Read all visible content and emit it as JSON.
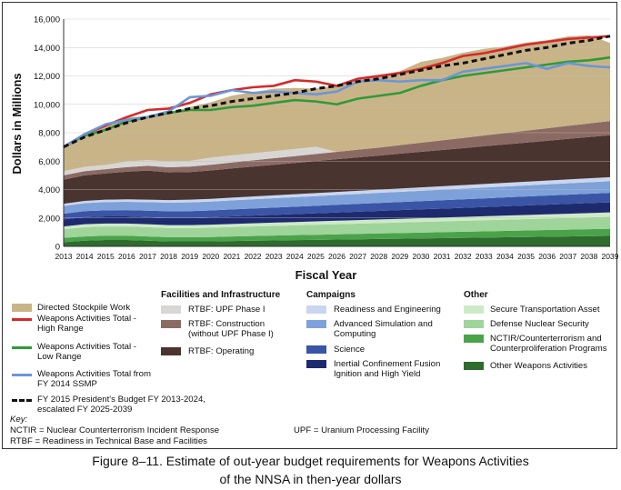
{
  "chart_data": {
    "type": "area",
    "title": "",
    "xlabel": "Fiscal Year",
    "ylabel": "Dollars in Millions",
    "x": [
      "2013",
      "2014",
      "2015",
      "2016",
      "2017",
      "2018",
      "2019",
      "2020",
      "2021",
      "2022",
      "2023",
      "2024",
      "2025",
      "2026",
      "2027",
      "2028",
      "2029",
      "2030",
      "2031",
      "2032",
      "2033",
      "2034",
      "2035",
      "2036",
      "2037",
      "2038",
      "2039"
    ],
    "ylim": [
      0,
      16000
    ],
    "yticks": [
      "0",
      "2,000",
      "4,000",
      "6,000",
      "8,000",
      "10,000",
      "12,000",
      "14,000",
      "16,000"
    ],
    "grid": true,
    "stacked_series": [
      {
        "name": "Other Weapons Activities",
        "color": "#2e6b2e",
        "values": [
          300,
          400,
          450,
          450,
          400,
          350,
          350,
          350,
          380,
          400,
          420,
          440,
          460,
          480,
          500,
          520,
          540,
          560,
          580,
          600,
          620,
          640,
          660,
          680,
          700,
          720,
          740
        ]
      },
      {
        "name": "NCTIR/Counterterrorism and Counterproliferation Programs",
        "color": "#4aa34a",
        "values": [
          300,
          300,
          300,
          300,
          300,
          300,
          300,
          310,
          320,
          330,
          340,
          350,
          360,
          370,
          380,
          390,
          400,
          410,
          420,
          430,
          440,
          450,
          460,
          470,
          480,
          490,
          500
        ]
      },
      {
        "name": "Defense Nuclear Security",
        "color": "#9fd49a",
        "values": [
          600,
          650,
          650,
          650,
          650,
          640,
          640,
          650,
          660,
          670,
          680,
          690,
          700,
          710,
          720,
          730,
          740,
          750,
          760,
          770,
          780,
          790,
          800,
          810,
          820,
          830,
          840
        ]
      },
      {
        "name": "Secure Transportation Asset",
        "color": "#cdeac7",
        "values": [
          200,
          210,
          210,
          210,
          210,
          210,
          210,
          215,
          220,
          225,
          230,
          235,
          240,
          245,
          250,
          255,
          260,
          265,
          270,
          275,
          280,
          285,
          290,
          295,
          300,
          305,
          310
        ]
      },
      {
        "name": "Inertial Confinement Fusion Ignition and High Yield",
        "color": "#1e2a6e",
        "values": [
          500,
          500,
          500,
          500,
          500,
          510,
          510,
          520,
          530,
          540,
          550,
          560,
          570,
          580,
          590,
          600,
          610,
          620,
          630,
          640,
          650,
          660,
          670,
          680,
          690,
          700,
          710
        ]
      },
      {
        "name": "Science",
        "color": "#3a55a6",
        "values": [
          400,
          420,
          430,
          440,
          450,
          460,
          470,
          480,
          490,
          500,
          510,
          520,
          530,
          540,
          550,
          560,
          570,
          580,
          590,
          600,
          610,
          620,
          630,
          640,
          650,
          660,
          670
        ]
      },
      {
        "name": "Advanced Simulation and Computing",
        "color": "#7ea1da",
        "values": [
          550,
          560,
          580,
          590,
          600,
          610,
          620,
          630,
          640,
          650,
          660,
          670,
          680,
          690,
          700,
          710,
          720,
          730,
          740,
          750,
          760,
          770,
          780,
          790,
          800,
          810,
          820
        ]
      },
      {
        "name": "Readiness and Engineering",
        "color": "#c9d6ef",
        "values": [
          150,
          160,
          165,
          170,
          175,
          180,
          185,
          190,
          195,
          200,
          205,
          210,
          215,
          220,
          225,
          230,
          235,
          240,
          245,
          250,
          255,
          260,
          265,
          270,
          275,
          280,
          285
        ]
      },
      {
        "name": "RTBF: Operating",
        "color": "#4a3430",
        "values": [
          1700,
          1800,
          1850,
          1950,
          2050,
          1950,
          1950,
          2000,
          2050,
          2100,
          2150,
          2200,
          2250,
          2300,
          2350,
          2400,
          2450,
          2500,
          2550,
          2600,
          2650,
          2700,
          2750,
          2800,
          2850,
          2900,
          2950
        ]
      },
      {
        "name": "RTBF: Construction (without UPF Phase I)",
        "color": "#8c6a64",
        "values": [
          300,
          300,
          300,
          320,
          340,
          360,
          380,
          400,
          420,
          440,
          460,
          480,
          500,
          520,
          540,
          560,
          600,
          640,
          680,
          720,
          760,
          800,
          840,
          880,
          920,
          960,
          1000
        ]
      },
      {
        "name": "RTBF: UPF Phase I",
        "color": "#d8d6d4",
        "values": [
          300,
          300,
          300,
          400,
          400,
          400,
          400,
          500,
          500,
          500,
          500,
          500,
          500,
          0,
          0,
          0,
          0,
          0,
          0,
          0,
          0,
          0,
          0,
          0,
          0,
          0,
          0
        ]
      },
      {
        "name": "Directed Stockpile Work",
        "color": "#c9b488",
        "values": [
          1700,
          2200,
          2700,
          3100,
          3100,
          3400,
          3800,
          3900,
          4200,
          4300,
          4400,
          4300,
          4100,
          4700,
          4900,
          5100,
          5200,
          5700,
          5800,
          6000,
          6100,
          6100,
          6200,
          6200,
          6300,
          6200,
          5500
        ]
      }
    ],
    "line_series": [
      {
        "name": "Weapons Activities Total - High Range",
        "color": "#d62a2a",
        "values": [
          7000,
          7900,
          8500,
          9100,
          9600,
          9700,
          10100,
          10700,
          11000,
          11200,
          11300,
          11700,
          11600,
          11300,
          11800,
          12000,
          12200,
          12500,
          12900,
          13400,
          13600,
          13900,
          14200,
          14400,
          14600,
          14700,
          14800
        ]
      },
      {
        "name": "Weapons Activities Total - Low Range",
        "color": "#2f9a3a",
        "values": [
          7000,
          7800,
          8200,
          8800,
          9100,
          9400,
          9600,
          9600,
          9800,
          9900,
          10100,
          10300,
          10200,
          10000,
          10400,
          10600,
          10800,
          11300,
          11700,
          12000,
          12200,
          12400,
          12600,
          12800,
          13000,
          13100,
          13300
        ]
      },
      {
        "name": "Weapons Activities Total from FY 2014 SSMP",
        "color": "#6b96d8",
        "values": [
          7000,
          7900,
          8600,
          8900,
          9100,
          9500,
          10500,
          10600,
          11000,
          10800,
          10900,
          10800,
          10700,
          10900,
          11600,
          11700,
          11600,
          11700,
          11700,
          12300,
          12500,
          12700,
          12900,
          12500,
          12900,
          12700,
          12600
        ]
      },
      {
        "name": "FY 2015 President's Budget FY 2013-2024, escalated FY 2025-2039",
        "color": "#111111",
        "dashed": true,
        "values": [
          7000,
          7700,
          8200,
          8700,
          9100,
          9400,
          9700,
          9900,
          10200,
          10400,
          10600,
          10800,
          11100,
          11300,
          11600,
          11800,
          12100,
          12400,
          12700,
          12900,
          13200,
          13500,
          13800,
          14000,
          14300,
          14500,
          14800
        ]
      }
    ]
  },
  "legend": {
    "col1": [
      {
        "key": "dsw",
        "type": "swatch",
        "color": "#c9b488",
        "label": "Directed Stockpile Work"
      },
      {
        "key": "high",
        "type": "line",
        "color": "#d62a2a",
        "label": "Weapons Activities Total - High Range"
      },
      {
        "key": "low",
        "type": "line",
        "color": "#2f9a3a",
        "label": "Weapons Activities Total - Low Range"
      },
      {
        "key": "ssmp",
        "type": "line",
        "color": "#6b96d8",
        "label": "Weapons Activities Total from FY 2014 SSMP"
      },
      {
        "key": "pb",
        "type": "dash",
        "color": "#111111",
        "label": "FY 2015 President's Budget FY 2013-2024, escalated FY 2025-2039"
      }
    ],
    "col2_heading": "Facilities and Infrastructure",
    "col2": [
      {
        "color": "#d8d6d4",
        "label": "RTBF: UPF Phase I"
      },
      {
        "color": "#8c6a64",
        "label": "RTBF: Construction (without UPF Phase I)"
      },
      {
        "color": "#4a3430",
        "label": "RTBF: Operating"
      }
    ],
    "col3_heading": "Campaigns",
    "col3": [
      {
        "color": "#c9d6ef",
        "label": "Readiness and Engineering"
      },
      {
        "color": "#7ea1da",
        "label": "Advanced Simulation and Computing"
      },
      {
        "color": "#3a55a6",
        "label": "Science"
      },
      {
        "color": "#1e2a6e",
        "label": "Inertial Confinement Fusion Ignition and High Yield"
      }
    ],
    "col4_heading": "Other",
    "col4": [
      {
        "color": "#cdeac7",
        "label": "Secure Transportation Asset"
      },
      {
        "color": "#9fd49a",
        "label": "Defense Nuclear Security"
      },
      {
        "color": "#4aa34a",
        "label": "NCTIR/Counterterrorism and Counterproliferation Programs"
      },
      {
        "color": "#2e6b2e",
        "label": "Other Weapons Activities"
      }
    ]
  },
  "key": {
    "heading": "Key:",
    "nctir": "NCTIR = Nuclear Counterterrorism Incident Response",
    "rtbf": "RTBF = Readiness in Technical Base and Facilities",
    "upf": "UPF = Uranium Processing Facility"
  },
  "caption": {
    "line1": "Figure 8–11.  Estimate of out-year budget requirements for Weapons Activities",
    "line2": "of the NNSA in then-year dollars"
  }
}
